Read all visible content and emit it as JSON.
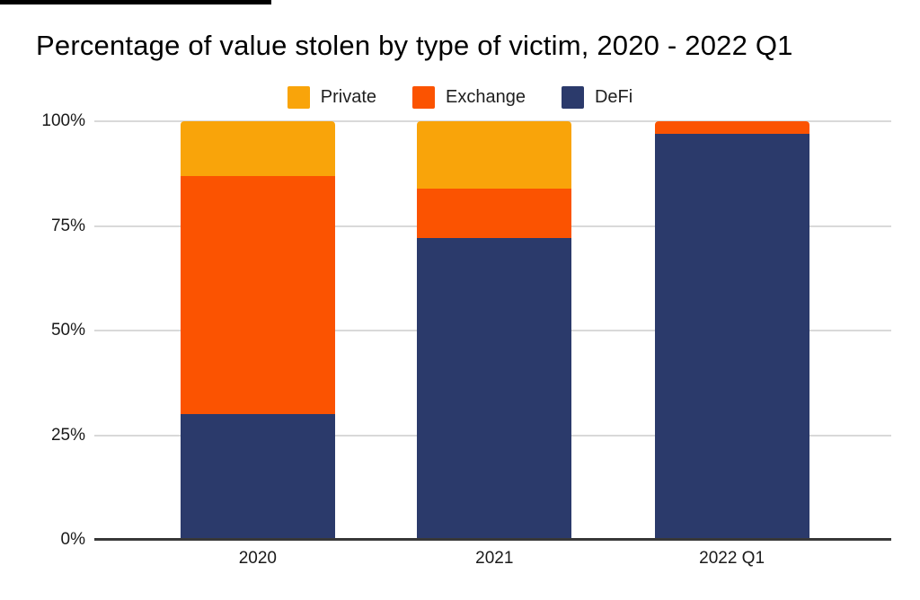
{
  "title": "Percentage of value stolen by type of victim, 2020 - 2022 Q1",
  "legend": {
    "items": [
      {
        "label": "Private",
        "color": "#F9A40A"
      },
      {
        "label": "Exchange",
        "color": "#FB5301"
      },
      {
        "label": "DeFi",
        "color": "#2B3A6B"
      }
    ]
  },
  "y_axis": {
    "tick_labels": [
      "100%",
      "75%",
      "50%",
      "25%",
      "0%"
    ]
  },
  "x_axis": {
    "categories": [
      "2020",
      "2021",
      "2022 Q1"
    ]
  },
  "colors": {
    "private": "#F9A40A",
    "exchange": "#FB5301",
    "defi": "#2B3A6B",
    "gridline": "#D9D9D9",
    "axis": "#383838",
    "top_strip": "#000000"
  },
  "chart_data": {
    "type": "bar",
    "subtype": "stacked-100-percent",
    "title": "Percentage of value stolen by type of victim, 2020 - 2022 Q1",
    "categories": [
      "2020",
      "2021",
      "2022 Q1"
    ],
    "series": [
      {
        "name": "Private",
        "color": "#F9A40A",
        "values": [
          13,
          16,
          0
        ]
      },
      {
        "name": "Exchange",
        "color": "#FB5301",
        "values": [
          57,
          12,
          3
        ]
      },
      {
        "name": "DeFi",
        "color": "#2B3A6B",
        "values": [
          30,
          72,
          97
        ]
      }
    ],
    "stack_order_top_to_bottom": [
      "Private",
      "Exchange",
      "DeFi"
    ],
    "xlabel": "",
    "ylabel": "",
    "ylim": [
      0,
      100
    ],
    "yticks": [
      0,
      25,
      50,
      75,
      100
    ],
    "ytick_format": "percent",
    "grid": true,
    "legend_position": "top-center"
  }
}
